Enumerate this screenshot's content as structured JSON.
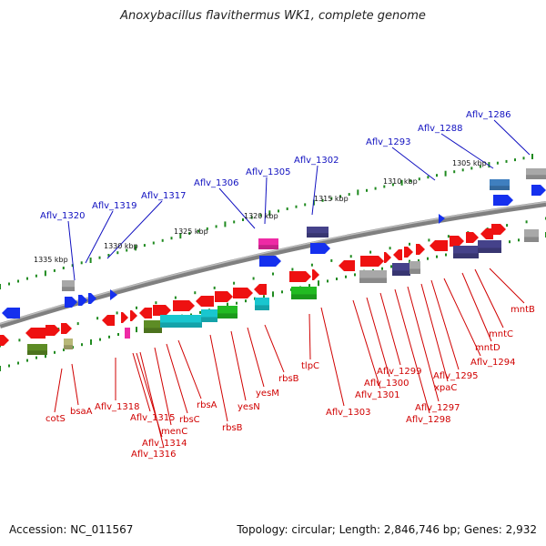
{
  "title": "Anoxybacillus flavithermus WK1, complete genome",
  "footer": {
    "accession": "Accession: NC_011567",
    "topology": "Topology: circular; Length: 2,846,746 bp; Genes: 2,932"
  },
  "colors": {
    "backbone": "#808080",
    "tick": "#1f8a1f",
    "upper_label": "#1010c0",
    "lower_label": "#d00000",
    "cds_red": "#ee1111",
    "blue": "#1530ee",
    "navy": "#45428a",
    "cyan": "#19c6cf",
    "green": "#22bb22",
    "olive": "#5d8c25",
    "magenta": "#ee2aa5",
    "gray": "#a8a8a8",
    "steel": "#3f7fbf"
  },
  "scale_labels": [
    {
      "text": "1335 kbp"
    },
    {
      "text": "1330 kbp"
    },
    {
      "text": "1325 kbp"
    },
    {
      "text": "1320 kbp"
    },
    {
      "text": "1315 kbp"
    },
    {
      "text": "1310 kbp"
    },
    {
      "text": "1305 kbp"
    }
  ],
  "upper_labels": [
    {
      "text": "Aflv_1320"
    },
    {
      "text": "Aflv_1319"
    },
    {
      "text": "Aflv_1317"
    },
    {
      "text": "Aflv_1306"
    },
    {
      "text": "Aflv_1305"
    },
    {
      "text": "Aflv_1302"
    },
    {
      "text": "Aflv_1293"
    },
    {
      "text": "Aflv_1288"
    },
    {
      "text": "Aflv_1286"
    }
  ],
  "lower_labels": [
    {
      "text": "cotS"
    },
    {
      "text": "bsaA"
    },
    {
      "text": "Aflv_1318"
    },
    {
      "text": "Aflv_1315"
    },
    {
      "text": "Aflv_1314"
    },
    {
      "text": "Aflv_1316"
    },
    {
      "text": "menC"
    },
    {
      "text": "rbsC"
    },
    {
      "text": "rbsA"
    },
    {
      "text": "rbsB"
    },
    {
      "text": "yesN"
    },
    {
      "text": "yesM"
    },
    {
      "text": "rbsB"
    },
    {
      "text": "tlpC"
    },
    {
      "text": "Aflv_1303"
    },
    {
      "text": "Aflv_1301"
    },
    {
      "text": "Aflv_1300"
    },
    {
      "text": "Aflv_1299"
    },
    {
      "text": "Aflv_1298"
    },
    {
      "text": "Aflv_1297"
    },
    {
      "text": "xpaC"
    },
    {
      "text": "Aflv_1295"
    },
    {
      "text": "Aflv_1294"
    },
    {
      "text": "mntD"
    },
    {
      "text": "mntC"
    },
    {
      "text": "mntB"
    }
  ]
}
